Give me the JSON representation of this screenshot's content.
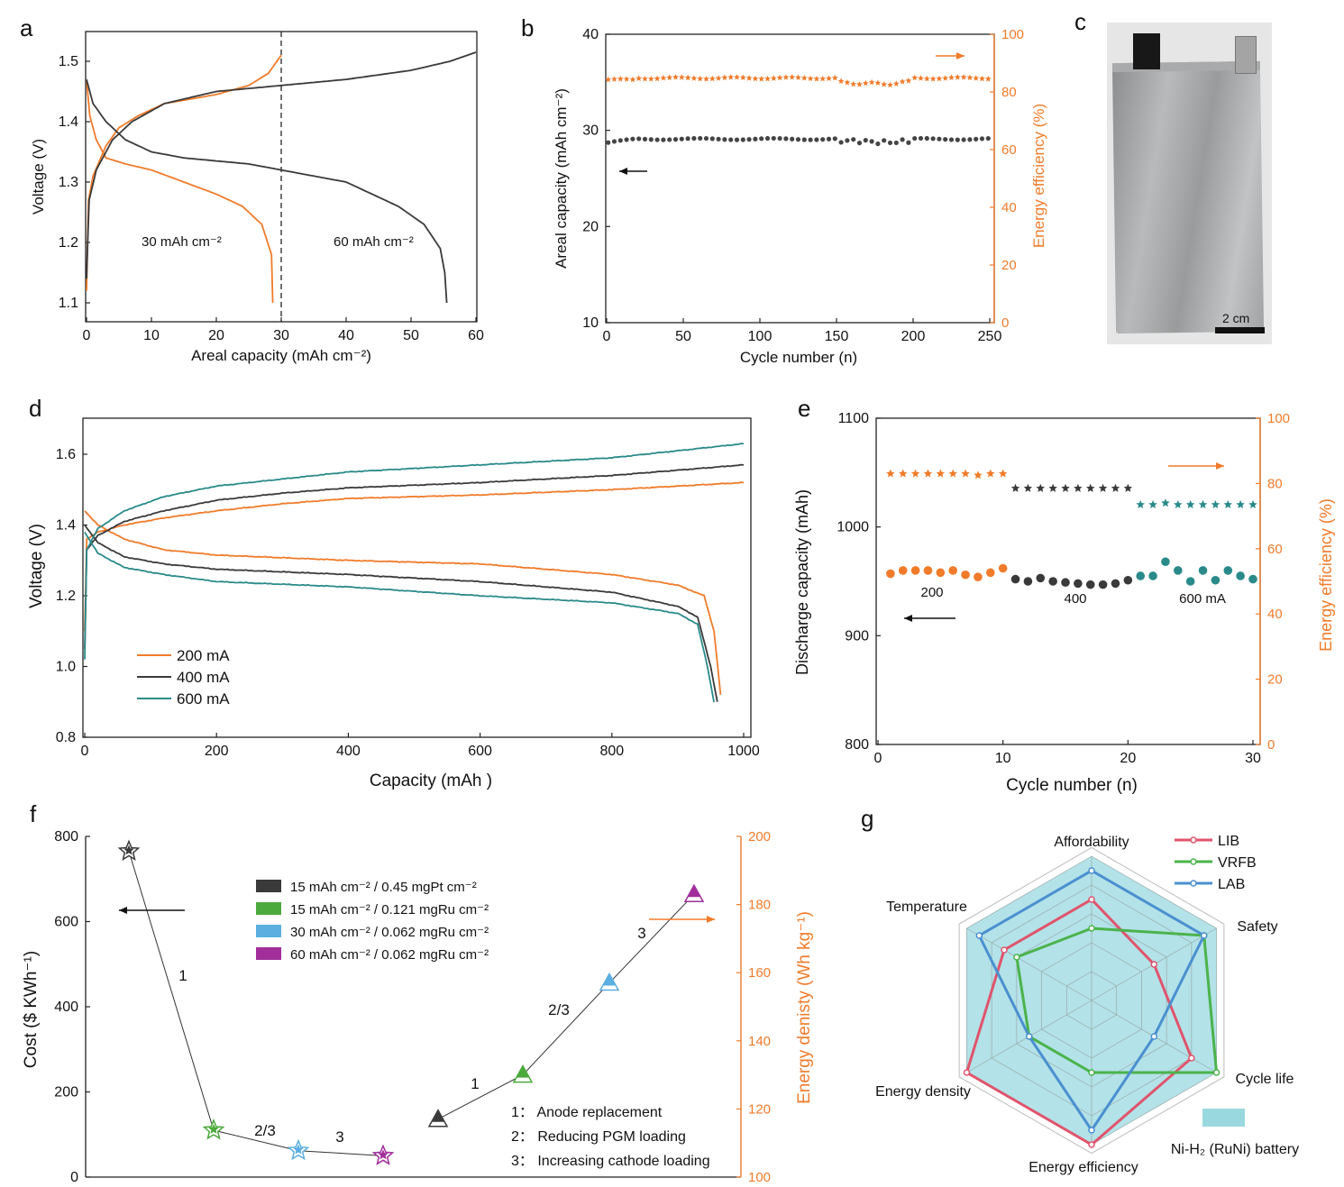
{
  "panels": {
    "a": "a",
    "b": "b",
    "c": "c",
    "d": "d",
    "e": "e",
    "f": "f",
    "g": "g"
  },
  "colors": {
    "orange": "#f07b2a",
    "black": "#3a3a3a",
    "teal": "#2a8a8a",
    "red": "#e0546c",
    "green": "#4bb34b",
    "blue": "#4a90d0",
    "fillcyan": "#9ad8e0",
    "purple": "#a12e9a",
    "lightblue": "#5aaee0",
    "greenf": "#4caa3c"
  },
  "photo": {
    "scale_label": "2 cm"
  },
  "chart_data": [
    {
      "id": "a",
      "type": "line",
      "xlabel": "Areal capacity (mAh cm⁻²)",
      "ylabel": "Voltage (V)",
      "xlim": [
        0,
        60
      ],
      "ylim": [
        1.08,
        1.55
      ],
      "xticks": [
        0,
        10,
        20,
        30,
        40,
        50,
        60
      ],
      "yticks": [
        1.1,
        1.2,
        1.3,
        1.4,
        1.5
      ],
      "annotations": [
        "30 mAh cm⁻²",
        "60 mAh cm⁻²"
      ],
      "dashed_x": 30,
      "series": [
        {
          "name": "30 mAh charge",
          "color": "orange",
          "points": [
            [
              0,
              1.12
            ],
            [
              0.3,
              1.27
            ],
            [
              1,
              1.31
            ],
            [
              3,
              1.36
            ],
            [
              5,
              1.39
            ],
            [
              8,
              1.41
            ],
            [
              12,
              1.43
            ],
            [
              20,
              1.445
            ],
            [
              25,
              1.46
            ],
            [
              28,
              1.48
            ],
            [
              30,
              1.51
            ]
          ]
        },
        {
          "name": "30 mAh discharge",
          "color": "orange",
          "points": [
            [
              0,
              1.47
            ],
            [
              0.5,
              1.41
            ],
            [
              1.5,
              1.37
            ],
            [
              3,
              1.34
            ],
            [
              6,
              1.33
            ],
            [
              10,
              1.32
            ],
            [
              15,
              1.3
            ],
            [
              20,
              1.28
            ],
            [
              24,
              1.26
            ],
            [
              27,
              1.23
            ],
            [
              28.5,
              1.18
            ],
            [
              28.7,
              1.1
            ]
          ]
        },
        {
          "name": "60 mAh charge",
          "color": "black",
          "points": [
            [
              0,
              1.14
            ],
            [
              0.4,
              1.27
            ],
            [
              1.5,
              1.32
            ],
            [
              4,
              1.37
            ],
            [
              7,
              1.4
            ],
            [
              12,
              1.43
            ],
            [
              20,
              1.45
            ],
            [
              30,
              1.46
            ],
            [
              40,
              1.47
            ],
            [
              50,
              1.485
            ],
            [
              56,
              1.5
            ],
            [
              60,
              1.515
            ]
          ]
        },
        {
          "name": "60 mAh discharge",
          "color": "black",
          "points": [
            [
              0,
              1.47
            ],
            [
              1,
              1.43
            ],
            [
              3,
              1.4
            ],
            [
              6,
              1.37
            ],
            [
              10,
              1.35
            ],
            [
              15,
              1.34
            ],
            [
              25,
              1.33
            ],
            [
              30,
              1.32
            ],
            [
              40,
              1.3
            ],
            [
              48,
              1.26
            ],
            [
              52,
              1.23
            ],
            [
              54.5,
              1.19
            ],
            [
              55.2,
              1.15
            ],
            [
              55.5,
              1.1
            ]
          ]
        }
      ]
    },
    {
      "id": "b",
      "type": "scatter",
      "xlabel": "Cycle number (n)",
      "ylabel": "Areal capacity (mAh cm⁻²)",
      "y2label": "Energy efficiency (%)",
      "xlim": [
        0,
        255
      ],
      "ylim": [
        10,
        40
      ],
      "y2lim": [
        0,
        100
      ],
      "xticks": [
        0,
        50,
        100,
        150,
        200,
        250
      ],
      "yticks": [
        10,
        20,
        30,
        40
      ],
      "y2ticks": [
        0,
        20,
        40,
        60,
        80,
        100
      ],
      "series": [
        {
          "name": "Areal capacity",
          "axis": "left",
          "color": "black",
          "marker": "circle",
          "base": 29.1
        },
        {
          "name": "Energy efficiency",
          "axis": "right",
          "color": "orange",
          "marker": "star",
          "base": 84.8
        }
      ]
    },
    {
      "id": "d",
      "type": "line",
      "xlabel": "Capacity (mAh )",
      "ylabel": "Voltage (V)",
      "xlim": [
        0,
        1000
      ],
      "ylim": [
        0.8,
        1.7
      ],
      "xticks": [
        0,
        200,
        400,
        600,
        800,
        1000
      ],
      "yticks": [
        0.8,
        1.0,
        1.2,
        1.4,
        1.6
      ],
      "legend": [
        "200 mA",
        "400 mA",
        "600 mA"
      ],
      "series": [
        {
          "name": "200 mA charge",
          "color": "orange",
          "points": [
            [
              0,
              1.1
            ],
            [
              3,
              1.36
            ],
            [
              20,
              1.38
            ],
            [
              60,
              1.4
            ],
            [
              120,
              1.42
            ],
            [
              200,
              1.44
            ],
            [
              300,
              1.46
            ],
            [
              400,
              1.475
            ],
            [
              600,
              1.485
            ],
            [
              800,
              1.5
            ],
            [
              1000,
              1.52
            ]
          ]
        },
        {
          "name": "200 mA discharge",
          "color": "orange",
          "points": [
            [
              0,
              1.44
            ],
            [
              20,
              1.4
            ],
            [
              60,
              1.36
            ],
            [
              120,
              1.33
            ],
            [
              200,
              1.315
            ],
            [
              400,
              1.3
            ],
            [
              600,
              1.29
            ],
            [
              800,
              1.26
            ],
            [
              900,
              1.23
            ],
            [
              940,
              1.2
            ],
            [
              955,
              1.1
            ],
            [
              965,
              0.92
            ]
          ]
        },
        {
          "name": "400 mA charge",
          "color": "black",
          "points": [
            [
              0,
              1.05
            ],
            [
              3,
              1.33
            ],
            [
              20,
              1.37
            ],
            [
              60,
              1.41
            ],
            [
              120,
              1.44
            ],
            [
              200,
              1.47
            ],
            [
              300,
              1.49
            ],
            [
              400,
              1.505
            ],
            [
              600,
              1.52
            ],
            [
              800,
              1.54
            ],
            [
              1000,
              1.57
            ]
          ]
        },
        {
          "name": "400 mA discharge",
          "color": "black",
          "points": [
            [
              0,
              1.4
            ],
            [
              20,
              1.35
            ],
            [
              60,
              1.31
            ],
            [
              120,
              1.29
            ],
            [
              200,
              1.275
            ],
            [
              400,
              1.26
            ],
            [
              600,
              1.24
            ],
            [
              800,
              1.21
            ],
            [
              900,
              1.17
            ],
            [
              930,
              1.14
            ],
            [
              950,
              1.0
            ],
            [
              960,
              0.9
            ]
          ]
        },
        {
          "name": "600 mA charge",
          "color": "teal",
          "points": [
            [
              0,
              1.02
            ],
            [
              3,
              1.33
            ],
            [
              20,
              1.39
            ],
            [
              60,
              1.44
            ],
            [
              120,
              1.48
            ],
            [
              200,
              1.51
            ],
            [
              300,
              1.53
            ],
            [
              400,
              1.55
            ],
            [
              600,
              1.57
            ],
            [
              800,
              1.59
            ],
            [
              1000,
              1.63
            ]
          ]
        },
        {
          "name": "600 mA discharge",
          "color": "teal",
          "points": [
            [
              0,
              1.38
            ],
            [
              20,
              1.32
            ],
            [
              60,
              1.28
            ],
            [
              120,
              1.26
            ],
            [
              200,
              1.24
            ],
            [
              400,
              1.225
            ],
            [
              600,
              1.2
            ],
            [
              800,
              1.18
            ],
            [
              900,
              1.15
            ],
            [
              930,
              1.12
            ],
            [
              945,
              1.0
            ],
            [
              955,
              0.9
            ]
          ]
        }
      ]
    },
    {
      "id": "e",
      "type": "scatter",
      "xlabel": "Cycle number (n)",
      "ylabel": "Discharge capacity (mAh)",
      "y2label": "Energy efficiency (%)",
      "xlim": [
        0,
        31
      ],
      "ylim": [
        800,
        1100
      ],
      "y2lim": [
        0,
        100
      ],
      "xticks": [
        0,
        10,
        20,
        30
      ],
      "yticks": [
        800,
        900,
        1000,
        1100
      ],
      "y2ticks": [
        0,
        20,
        40,
        60,
        80,
        100
      ],
      "annotations": [
        "200",
        "400",
        "600 mA"
      ],
      "capacity": [
        [
          1,
          957,
          "orange"
        ],
        [
          2,
          960,
          "orange"
        ],
        [
          3,
          960,
          "orange"
        ],
        [
          4,
          960,
          "orange"
        ],
        [
          5,
          958,
          "orange"
        ],
        [
          6,
          960,
          "orange"
        ],
        [
          7,
          956,
          "orange"
        ],
        [
          8,
          954,
          "orange"
        ],
        [
          9,
          958,
          "orange"
        ],
        [
          10,
          962,
          "orange"
        ],
        [
          11,
          952,
          "black"
        ],
        [
          12,
          950,
          "black"
        ],
        [
          13,
          953,
          "black"
        ],
        [
          14,
          950,
          "black"
        ],
        [
          15,
          949,
          "black"
        ],
        [
          16,
          948,
          "black"
        ],
        [
          17,
          947,
          "black"
        ],
        [
          18,
          947,
          "black"
        ],
        [
          19,
          948,
          "black"
        ],
        [
          20,
          951,
          "black"
        ],
        [
          21,
          955,
          "teal"
        ],
        [
          22,
          955,
          "teal"
        ],
        [
          23,
          968,
          "teal"
        ],
        [
          24,
          960,
          "teal"
        ],
        [
          25,
          950,
          "teal"
        ],
        [
          26,
          960,
          "teal"
        ],
        [
          27,
          951,
          "teal"
        ],
        [
          28,
          960,
          "teal"
        ],
        [
          29,
          955,
          "teal"
        ],
        [
          30,
          952,
          "teal"
        ]
      ],
      "efficiency": [
        [
          1,
          83,
          "orange"
        ],
        [
          2,
          83,
          "orange"
        ],
        [
          3,
          83,
          "orange"
        ],
        [
          4,
          83,
          "orange"
        ],
        [
          5,
          83,
          "orange"
        ],
        [
          6,
          83,
          "orange"
        ],
        [
          7,
          83,
          "orange"
        ],
        [
          8,
          82.5,
          "orange"
        ],
        [
          9,
          83,
          "orange"
        ],
        [
          10,
          83,
          "orange"
        ],
        [
          11,
          78.5,
          "black"
        ],
        [
          12,
          78.5,
          "black"
        ],
        [
          13,
          78.5,
          "black"
        ],
        [
          14,
          78.5,
          "black"
        ],
        [
          15,
          78.5,
          "black"
        ],
        [
          16,
          78.5,
          "black"
        ],
        [
          17,
          78.5,
          "black"
        ],
        [
          18,
          78.5,
          "black"
        ],
        [
          19,
          78.5,
          "black"
        ],
        [
          20,
          78.5,
          "black"
        ],
        [
          21,
          73.5,
          "teal"
        ],
        [
          22,
          73.5,
          "teal"
        ],
        [
          23,
          74,
          "teal"
        ],
        [
          24,
          73.5,
          "teal"
        ],
        [
          25,
          73.5,
          "teal"
        ],
        [
          26,
          73.5,
          "teal"
        ],
        [
          27,
          73.5,
          "teal"
        ],
        [
          28,
          73.5,
          "teal"
        ],
        [
          29,
          73.5,
          "teal"
        ],
        [
          30,
          73.5,
          "teal"
        ]
      ]
    },
    {
      "id": "f",
      "type": "scatter",
      "ylabel": "Cost ($ KWh⁻¹)",
      "y2label": "Energy denisty (Wh kg⁻¹)",
      "ylim": [
        0,
        800
      ],
      "y2lim": [
        100,
        200
      ],
      "yticks": [
        0,
        200,
        400,
        600,
        800
      ],
      "y2ticks": [
        100,
        120,
        140,
        160,
        180,
        200
      ],
      "legend": [
        "15 mAh cm⁻² / 0.45 mgPt cm⁻²",
        "15 mAh cm⁻² / 0.121 mgRu cm⁻²",
        "30 mAh cm⁻² / 0.062 mgRu cm⁻²",
        "60 mAh cm⁻² / 0.062 mgRu cm⁻²"
      ],
      "cost": [
        765,
        110,
        62,
        50
      ],
      "energy_density": [
        117,
        130,
        157,
        183
      ],
      "step_labels": [
        "1",
        "2/3",
        "3"
      ],
      "notes": [
        "1：  Anode replacement",
        "2：  Reducing PGM loading",
        "3：  Increasing cathode loading"
      ]
    },
    {
      "id": "g",
      "type": "radar",
      "axes": [
        "Affordability",
        "Safety",
        "Cycle life",
        "Energy efficiency",
        "Energy density",
        "Temperature"
      ],
      "scale_max": 5,
      "series": [
        {
          "name": "LIB",
          "color": "red",
          "values": [
            3.5,
            2.5,
            4.0,
            5.0,
            5.0,
            3.5
          ]
        },
        {
          "name": "VRFB",
          "color": "green",
          "values": [
            2.5,
            4.5,
            5.0,
            2.5,
            2.5,
            3.0
          ]
        },
        {
          "name": "LAB",
          "color": "blue",
          "values": [
            4.5,
            4.5,
            2.5,
            4.5,
            2.5,
            4.5
          ]
        }
      ],
      "fill_label": "Ni-H₂ (RuNi) battery"
    }
  ]
}
